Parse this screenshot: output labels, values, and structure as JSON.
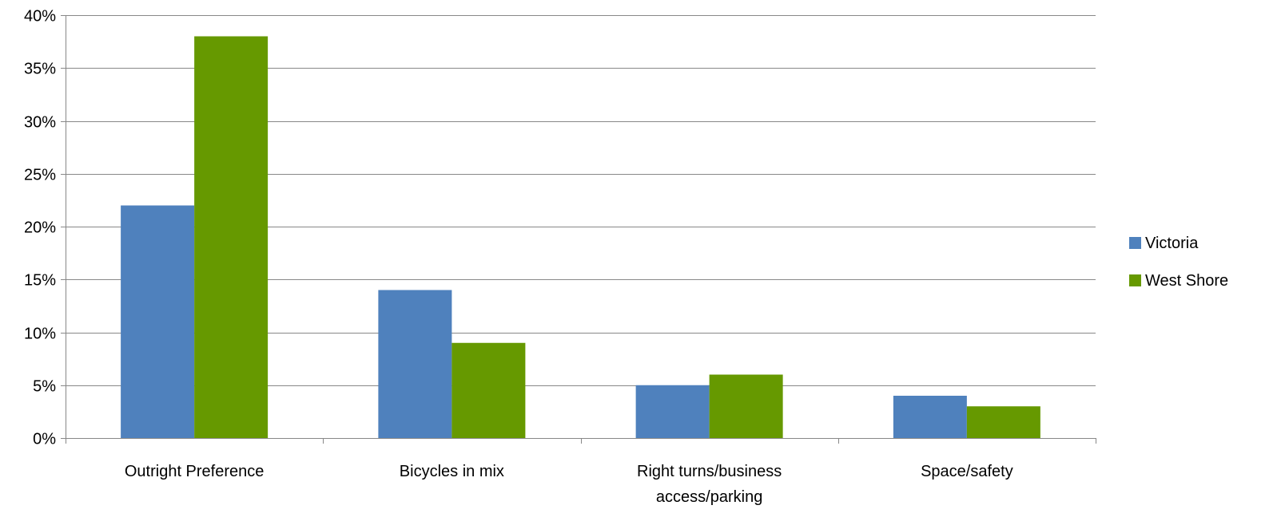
{
  "chart_data": {
    "type": "bar",
    "title": "",
    "xlabel": "",
    "ylabel": "",
    "categories": [
      [
        "Outright Preference"
      ],
      [
        "Bicycles in mix"
      ],
      [
        "Right turns/business",
        "access/parking"
      ],
      [
        "Space/safety"
      ]
    ],
    "series": [
      {
        "name": "Victoria",
        "color": "#4F81BD",
        "values": [
          22,
          14,
          5,
          4
        ]
      },
      {
        "name": "West Shore",
        "color": "#669900",
        "values": [
          38,
          9,
          6,
          3
        ]
      }
    ],
    "ylim": [
      0,
      40
    ],
    "y_ticks": [
      "0%",
      "5%",
      "10%",
      "15%",
      "20%",
      "25%",
      "30%",
      "35%",
      "40%"
    ],
    "grid": true,
    "gridline_color": "#888888",
    "legend_position": "right"
  }
}
